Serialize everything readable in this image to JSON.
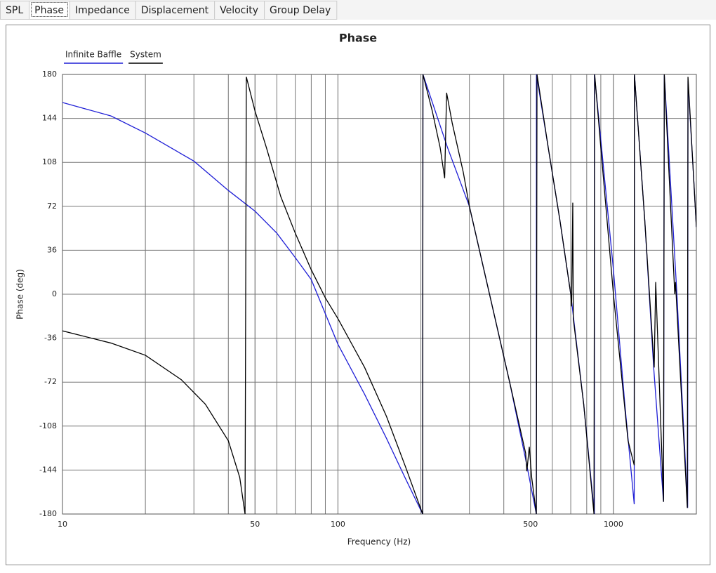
{
  "tabs": [
    "SPL",
    "Phase",
    "Impedance",
    "Displacement",
    "Velocity",
    "Group Delay"
  ],
  "selected_tab": 1,
  "chart_data": {
    "type": "line",
    "title": "Phase",
    "x_label": "Frequency (Hz)",
    "y_label": "Phase (deg)",
    "x_log": true,
    "grid": true,
    "minor_grid": true,
    "legend": "top-left",
    "xlim": [
      10,
      2000
    ],
    "xticks": [
      10,
      50,
      100,
      500,
      1000
    ],
    "ylim": [
      -180,
      180
    ],
    "yticks": [
      180,
      144,
      108,
      72,
      36,
      0,
      -36,
      -72,
      -108,
      -144,
      -180
    ],
    "series": [
      {
        "name": "Infinite Baffle",
        "color": "#1f1fd6",
        "x": [
          10,
          15,
          20,
          30,
          40,
          50,
          60,
          70,
          80,
          100,
          125,
          150,
          175,
          203,
          203.5,
          250,
          300,
          355,
          420,
          480,
          525,
          525.5,
          640,
          700,
          780,
          853,
          853.5,
          1000,
          1100,
          1190,
          1192,
          1300,
          1400,
          1520,
          1530,
          1700,
          1860,
          1865,
          1950,
          2000
        ],
        "values": [
          157,
          146,
          132,
          109,
          85,
          68,
          50,
          30,
          12,
          -41,
          -82,
          -118,
          -150,
          -180,
          180,
          120,
          72,
          0,
          -72,
          -135,
          -180,
          180,
          60,
          0,
          -90,
          -180,
          180,
          20,
          -90,
          -172,
          180,
          60,
          -60,
          -170,
          180,
          0,
          -175,
          175,
          100,
          55
        ]
      },
      {
        "name": "System",
        "color": "#000000",
        "x": [
          10,
          15,
          20,
          27,
          33,
          40,
          44,
          46,
          46.5,
          50,
          55,
          62,
          70,
          80,
          90,
          100,
          125,
          150,
          175,
          203,
          203.5,
          220,
          235,
          244,
          248,
          260,
          285,
          300,
          355,
          420,
          480,
          485,
          495,
          505,
          525,
          528,
          580,
          640,
          700,
          705,
          712,
          715,
          780,
          850,
          855,
          900,
          1000,
          1130,
          1190,
          1192,
          1300,
          1406,
          1424,
          1520,
          1530,
          1670,
          1680,
          1855,
          1865,
          1950,
          2000
        ],
        "values": [
          -30,
          -40,
          -50,
          -70,
          -90,
          -120,
          -150,
          -180,
          178,
          150,
          120,
          80,
          50,
          20,
          -3,
          -20,
          -60,
          -100,
          -140,
          -180,
          180,
          150,
          120,
          95,
          165,
          140,
          100,
          72,
          0,
          -72,
          -130,
          -145,
          -125,
          -150,
          -180,
          180,
          120,
          60,
          0,
          -10,
          75,
          -20,
          -90,
          -180,
          180,
          120,
          0,
          -120,
          -140,
          180,
          60,
          -60,
          10,
          -170,
          180,
          0,
          10,
          -175,
          178,
          100,
          55
        ]
      }
    ]
  }
}
